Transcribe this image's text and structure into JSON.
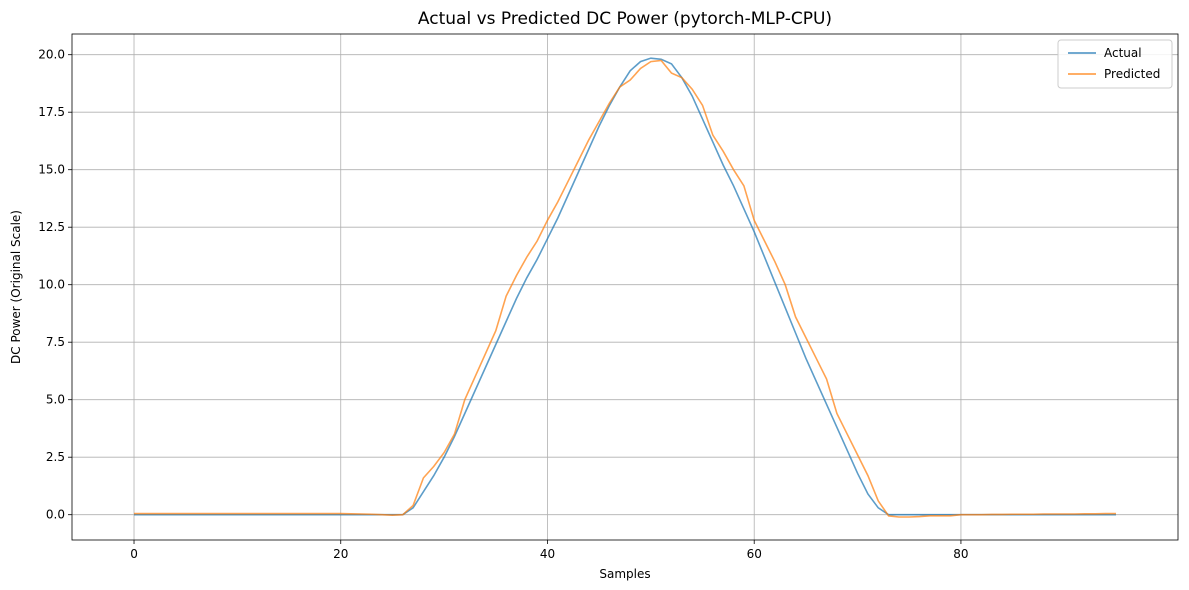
{
  "chart_data": {
    "type": "line",
    "title": "Actual vs Predicted DC Power (pytorch-MLP-CPU)",
    "xlabel": "Samples",
    "ylabel": "DC Power (Original Scale)",
    "xlim": [
      -6,
      101
    ],
    "ylim": [
      -1.1,
      20.9
    ],
    "xticks": [
      0,
      20,
      40,
      60,
      80
    ],
    "yticks": [
      0.0,
      2.5,
      5.0,
      7.5,
      10.0,
      12.5,
      15.0,
      17.5,
      20.0
    ],
    "xtick_labels": [
      "0",
      "20",
      "40",
      "60",
      "80"
    ],
    "ytick_labels": [
      "0.0",
      "2.5",
      "5.0",
      "7.5",
      "10.0",
      "12.5",
      "15.0",
      "17.5",
      "20.0"
    ],
    "grid": true,
    "legend_position": "top-right",
    "series": [
      {
        "name": "Actual",
        "color": "#1f77b4",
        "x": [
          0,
          1,
          2,
          3,
          4,
          5,
          6,
          7,
          8,
          9,
          10,
          11,
          12,
          13,
          14,
          15,
          16,
          17,
          18,
          19,
          20,
          21,
          22,
          23,
          24,
          25,
          26,
          27,
          28,
          29,
          30,
          31,
          32,
          33,
          34,
          35,
          36,
          37,
          38,
          39,
          40,
          41,
          42,
          43,
          44,
          45,
          46,
          47,
          48,
          49,
          50,
          51,
          52,
          53,
          54,
          55,
          56,
          57,
          58,
          59,
          60,
          61,
          62,
          63,
          64,
          65,
          66,
          67,
          68,
          69,
          70,
          71,
          72,
          73,
          74,
          75,
          76,
          77,
          78,
          79,
          80,
          81,
          82,
          83,
          84,
          85,
          86,
          87,
          88,
          89,
          90,
          91,
          92,
          93,
          94,
          95
        ],
        "y": [
          0,
          0,
          0,
          0,
          0,
          0,
          0,
          0,
          0,
          0,
          0,
          0,
          0,
          0,
          0,
          0,
          0,
          0,
          0,
          0,
          0,
          0,
          0,
          0,
          0,
          0,
          0,
          0.3,
          1.0,
          1.7,
          2.5,
          3.4,
          4.4,
          5.4,
          6.4,
          7.4,
          8.4,
          9.4,
          10.3,
          11.1,
          12.0,
          12.9,
          13.9,
          14.9,
          15.9,
          16.9,
          17.8,
          18.6,
          19.3,
          19.7,
          19.85,
          19.8,
          19.6,
          19.0,
          18.2,
          17.2,
          16.2,
          15.2,
          14.3,
          13.3,
          12.3,
          11.2,
          10.1,
          9.0,
          7.9,
          6.8,
          5.8,
          4.8,
          3.8,
          2.8,
          1.8,
          0.9,
          0.3,
          0,
          0,
          0,
          0,
          0,
          0,
          0,
          0,
          0,
          0,
          0,
          0,
          0,
          0,
          0,
          0,
          0,
          0,
          0,
          0,
          0,
          0,
          0
        ]
      },
      {
        "name": "Predicted",
        "color": "#ff7f0e",
        "x": [
          0,
          1,
          2,
          3,
          4,
          5,
          6,
          7,
          8,
          9,
          10,
          11,
          12,
          13,
          14,
          15,
          16,
          17,
          18,
          19,
          20,
          21,
          22,
          23,
          24,
          25,
          26,
          27,
          28,
          29,
          30,
          31,
          32,
          33,
          34,
          35,
          36,
          37,
          38,
          39,
          40,
          41,
          42,
          43,
          44,
          45,
          46,
          47,
          48,
          49,
          50,
          51,
          52,
          53,
          54,
          55,
          56,
          57,
          58,
          59,
          60,
          61,
          62,
          63,
          64,
          65,
          66,
          67,
          68,
          69,
          70,
          71,
          72,
          73,
          74,
          75,
          76,
          77,
          78,
          79,
          80,
          81,
          82,
          83,
          84,
          85,
          86,
          87,
          88,
          89,
          90,
          91,
          92,
          93,
          94,
          95
        ],
        "y": [
          0.05,
          0.05,
          0.05,
          0.05,
          0.05,
          0.05,
          0.05,
          0.05,
          0.05,
          0.05,
          0.05,
          0.05,
          0.05,
          0.05,
          0.05,
          0.05,
          0.05,
          0.05,
          0.05,
          0.05,
          0.05,
          0.04,
          0.03,
          0.02,
          0,
          -0.02,
          0,
          0.4,
          1.6,
          2.1,
          2.7,
          3.5,
          5.0,
          6.0,
          7.0,
          8.0,
          9.5,
          10.4,
          11.2,
          11.9,
          12.8,
          13.6,
          14.5,
          15.4,
          16.3,
          17.1,
          17.9,
          18.6,
          18.9,
          19.4,
          19.7,
          19.75,
          19.2,
          19.0,
          18.5,
          17.8,
          16.5,
          15.8,
          15.0,
          14.3,
          12.8,
          11.9,
          11.0,
          10.0,
          8.6,
          7.7,
          6.8,
          5.9,
          4.4,
          3.5,
          2.6,
          1.7,
          0.6,
          -0.05,
          -0.1,
          -0.1,
          -0.08,
          -0.05,
          -0.05,
          -0.05,
          0,
          0,
          0,
          0.01,
          0.01,
          0.02,
          0.02,
          0.02,
          0.03,
          0.03,
          0.03,
          0.03,
          0.04,
          0.04,
          0.05,
          0.05
        ]
      }
    ]
  }
}
